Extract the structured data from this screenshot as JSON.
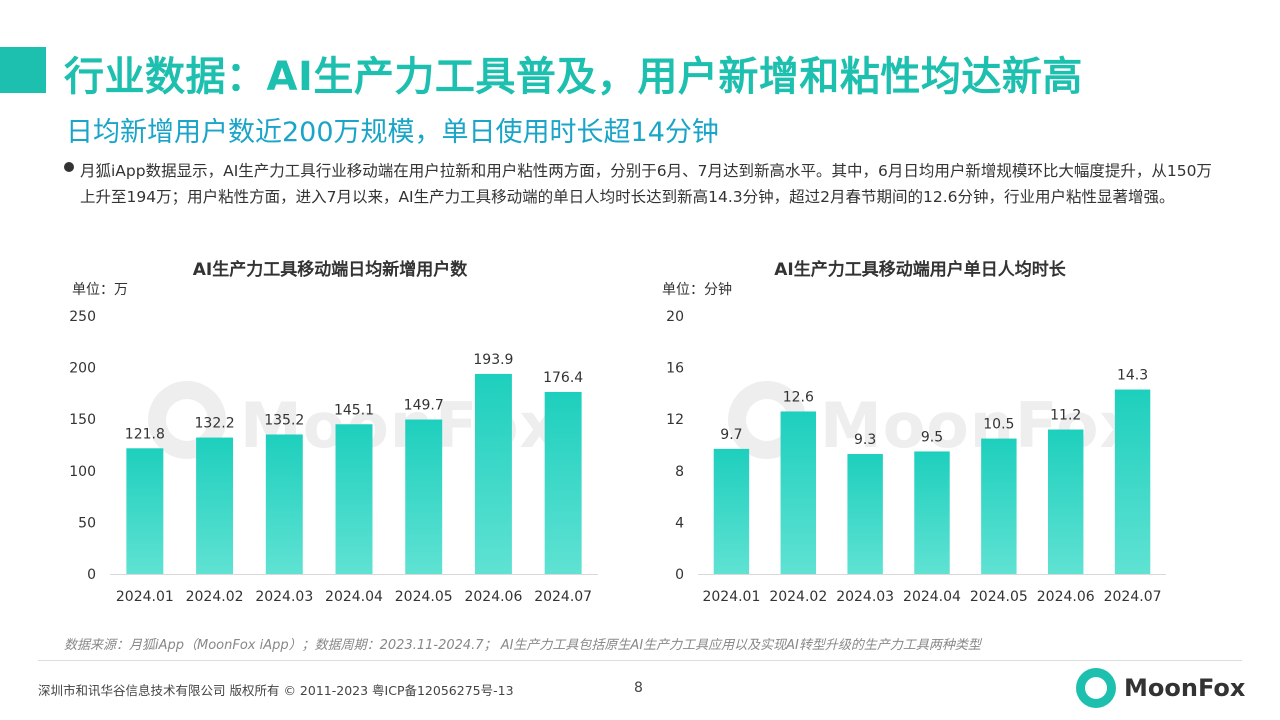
{
  "header": {
    "title": "行业数据：AI生产力工具普及，用户新增和粘性均达新高",
    "subtitle": "日均新增用户数近200万规模，单日使用时长超14分钟"
  },
  "summary": {
    "bullet": "月狐iApp数据显示，AI生产力工具行业移动端在用户拉新和用户粘性两方面，分别于6月、7月达到新高水平。其中，6月日均用户新增规模环比大幅度提升，从150万上升至194万；用户粘性方面，进入7月以来，AI生产力工具移动端的单日人均时长达到新高14.3分钟，超过2月春节期间的12.6分钟，行业用户粘性显著增强。"
  },
  "watermark": "MoonFox",
  "colors": {
    "accent": "#1dbfae",
    "subtitle": "#1aa5c8",
    "bar_top": "#1ecfbd",
    "bar_bottom": "#5fe2d3"
  },
  "chart_data": [
    {
      "type": "bar",
      "title": "AI生产力工具移动端日均新增用户数",
      "unit_label": "单位：万",
      "categories": [
        "2024.01",
        "2024.02",
        "2024.03",
        "2024.04",
        "2024.05",
        "2024.06",
        "2024.07"
      ],
      "values": [
        121.8,
        132.2,
        135.2,
        145.1,
        149.7,
        193.9,
        176.4
      ],
      "ylim": [
        0,
        250
      ],
      "yticks": [
        0,
        50,
        100,
        150,
        200,
        250
      ],
      "grid": false
    },
    {
      "type": "bar",
      "title": "AI生产力工具移动端用户单日人均时长",
      "unit_label": "单位：分钟",
      "categories": [
        "2024.01",
        "2024.02",
        "2024.03",
        "2024.04",
        "2024.05",
        "2024.06",
        "2024.07"
      ],
      "values": [
        9.7,
        12.6,
        9.3,
        9.5,
        10.5,
        11.2,
        14.3
      ],
      "ylim": [
        0,
        20
      ],
      "yticks": [
        0,
        4,
        8,
        12,
        16,
        20
      ],
      "grid": false
    }
  ],
  "footer": {
    "source": "数据来源：月狐iApp（MoonFox iApp）；数据周期：2023.11-2024.7； AI生产力工具包括原生AI生产力工具应用以及实现AI转型升级的生产力工具两种类型",
    "copyright": "深圳市和讯华谷信息技术有限公司 版权所有 © 2011-2023 粤ICP备12056275号-13",
    "page_number": "8",
    "logo_text": "MoonFox"
  }
}
